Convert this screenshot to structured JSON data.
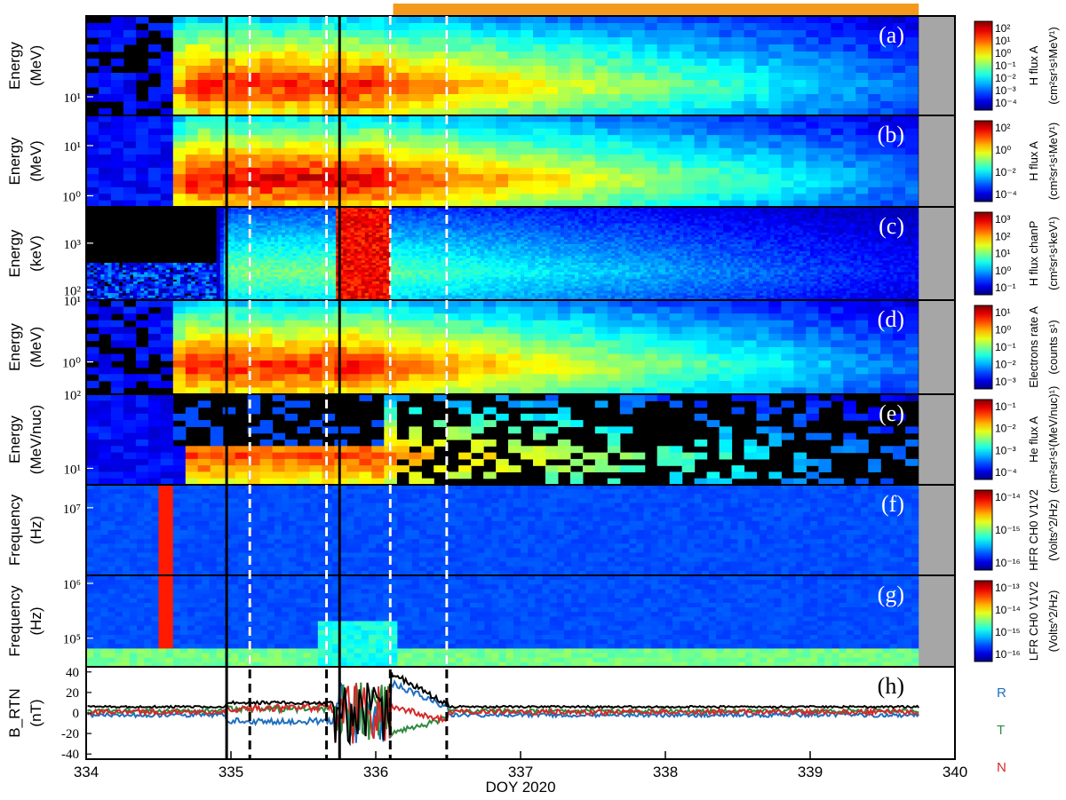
{
  "chart_data": {
    "type": "heatmap",
    "xlabel": "DOY 2020",
    "xlim": [
      334,
      340
    ],
    "x_ticks": [
      "334",
      "335",
      "336",
      "337",
      "338",
      "339",
      "340"
    ],
    "highlight_bar": {
      "x_start": 336.12,
      "x_end": 339.75,
      "color": "#f39a1e"
    },
    "solid_lines_doy": [
      334.97,
      335.75
    ],
    "dashed_lines_doy": [
      335.13,
      335.66,
      336.1,
      336.49
    ],
    "colors": {
      "dashed": "#ffffff",
      "solid": "#000000",
      "data_gap": "#a6a6a6",
      "background": "#000000"
    },
    "panels": [
      {
        "id": "a",
        "label": "(a)",
        "ylabel": [
          "Energy",
          "(MeV)"
        ],
        "yticks": [
          "10¹"
        ],
        "ytick_values": [
          10
        ],
        "ylim": [
          5,
          200
        ],
        "colorbar_label": [
          "H flux A",
          "(cm²sr¹s¹MeV¹)"
        ],
        "colorbar_ticks": [
          "10²",
          "10¹",
          "10⁰",
          "10⁻¹",
          "10⁻²",
          "10⁻³",
          "10⁻⁴"
        ],
        "onset": 334.57,
        "peak": 0.95,
        "fill": "blocky"
      },
      {
        "id": "b",
        "label": "(b)",
        "ylabel": [
          "Energy",
          "(MeV)"
        ],
        "yticks": [
          "10¹",
          "10⁰"
        ],
        "ytick_values": [
          10,
          1
        ],
        "ylim": [
          0.6,
          40
        ],
        "colorbar_label": [
          "H flux A",
          "(cm²sr¹s¹MeV¹)"
        ],
        "colorbar_ticks": [
          "10²",
          "10⁰",
          "10⁻²",
          "10⁻⁴"
        ],
        "onset": 334.57,
        "peak": 1.0,
        "fill": "smooth"
      },
      {
        "id": "c",
        "label": "(c)",
        "ylabel": [
          "Energy",
          "(keV)"
        ],
        "yticks": [
          "10³",
          "10²"
        ],
        "ytick_values": [
          1000,
          100
        ],
        "ylim": [
          60,
          6000
        ],
        "colorbar_label": [
          "H flux chanP",
          "(cm²sr¹s¹keV¹)"
        ],
        "colorbar_ticks": [
          "10³",
          "10²",
          "10¹",
          "10⁰",
          "10⁻¹"
        ],
        "onset": 334.9,
        "peak": 0.55,
        "fill": "noisy"
      },
      {
        "id": "d",
        "label": "(d)",
        "ylabel": [
          "Energy",
          "(MeV)"
        ],
        "yticks": [
          "10¹",
          "10⁰"
        ],
        "ytick_values": [
          10,
          1
        ],
        "ylim": [
          0.3,
          10
        ],
        "colorbar_label": [
          "Electrons rate A",
          "(counts s¹)"
        ],
        "colorbar_ticks": [
          "10¹",
          "10⁰",
          "10⁻¹",
          "10⁻²",
          "10⁻³"
        ],
        "onset": 334.57,
        "peak": 0.95,
        "fill": "blocky"
      },
      {
        "id": "e",
        "label": "(e)",
        "ylabel": [
          "Energy",
          "(MeV/nuc)"
        ],
        "yticks": [
          "10²",
          "10¹"
        ],
        "ytick_values": [
          100,
          10
        ],
        "ylim": [
          6,
          100
        ],
        "colorbar_label": [
          "He flux A",
          "(cm²sr¹s¹(MeV/nuc)¹)"
        ],
        "colorbar_ticks": [
          "10⁻¹",
          "10⁻²",
          "10⁻³",
          "10⁻⁴"
        ],
        "onset": 334.65,
        "peak": 0.9,
        "fill": "sparse"
      },
      {
        "id": "f",
        "label": "(f)",
        "ylabel": [
          "Frequency",
          "(Hz)"
        ],
        "yticks": [
          "10⁷"
        ],
        "ytick_values": [
          10000000
        ],
        "ylim": [
          1300000,
          20000000
        ],
        "colorbar_label": [
          "HFR CH0 V1V2",
          "(Volts^2/Hz)"
        ],
        "colorbar_ticks": [
          "10⁻¹⁴",
          "10⁻¹⁵",
          "10⁻¹⁶"
        ],
        "onset": 334.55,
        "peak": 0.2,
        "fill": "radio"
      },
      {
        "id": "g",
        "label": "(g)",
        "ylabel": [
          "Frequency",
          "(Hz)"
        ],
        "yticks": [
          "10⁶",
          "10⁵"
        ],
        "ytick_values": [
          1000000,
          100000
        ],
        "ylim": [
          30000,
          1400000
        ],
        "colorbar_label": [
          "LFR CH0 V1V2",
          "(Volts^2/Hz)"
        ],
        "colorbar_ticks": [
          "10⁻¹³",
          "10⁻¹⁴",
          "10⁻¹⁵",
          "10⁻¹⁶"
        ],
        "onset": 334.55,
        "peak": 0.35,
        "fill": "radio"
      },
      {
        "id": "h",
        "label": "(h)",
        "ylabel": [
          "B_RTN",
          "(nT)"
        ],
        "yticks": [
          "40",
          "20",
          "0",
          "-20",
          "-40"
        ],
        "ytick_values": [
          40,
          20,
          0,
          -20,
          -40
        ],
        "ylim": [
          -45,
          45
        ],
        "type": "line",
        "series": [
          {
            "name": "R",
            "color": "#1f6fbf"
          },
          {
            "name": "T",
            "color": "#2e8b3e"
          },
          {
            "name": "N",
            "color": "#d42a2a"
          },
          {
            "name": "",
            "color": "#000000"
          }
        ]
      }
    ]
  }
}
